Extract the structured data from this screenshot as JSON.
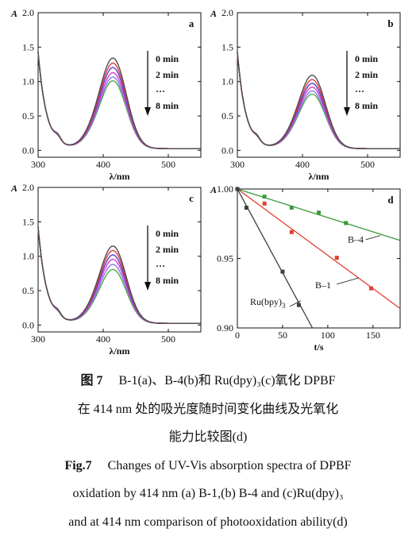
{
  "chart_data": [
    {
      "panel": "a",
      "type": "line",
      "ylabel_letter": "A",
      "xlabel": "λ/nm",
      "xlim": [
        300,
        550
      ],
      "ylim": [
        -0.1,
        2.0
      ],
      "x_ticks": [
        300,
        400,
        500
      ],
      "y_ticks": [
        "0.0",
        "0.5",
        "1.0",
        "1.5",
        "2.0"
      ],
      "legend": [
        "0 min",
        "2 min",
        "…",
        "8 min"
      ],
      "curve_peaks": [
        1.43,
        1.35,
        1.28,
        1.2,
        1.13,
        1.07
      ],
      "curve_colors": [
        "#4d4d4d",
        "#e03c3c",
        "#5a3fd0",
        "#d23fd0",
        "#8878e8",
        "#4ea84e"
      ]
    },
    {
      "panel": "b",
      "type": "line",
      "ylabel_letter": "A",
      "xlabel": "λ/nm",
      "xlim": [
        300,
        550
      ],
      "ylim": [
        -0.1,
        2.0
      ],
      "x_ticks": [
        300,
        400,
        500
      ],
      "y_ticks": [
        "0.0",
        "0.5",
        "1.0",
        "1.5",
        "2.0"
      ],
      "legend": [
        "0 min",
        "2 min",
        "…",
        "8 min"
      ],
      "curve_peaks": [
        1.16,
        1.09,
        1.03,
        0.97,
        0.91,
        0.86
      ],
      "curve_colors": [
        "#4d4d4d",
        "#e03c3c",
        "#5a3fd0",
        "#d23fd0",
        "#8878e8",
        "#4ea84e"
      ]
    },
    {
      "panel": "c",
      "type": "line",
      "ylabel_letter": "A",
      "xlabel": "λ/nm",
      "xlim": [
        300,
        550
      ],
      "ylim": [
        -0.1,
        2.0
      ],
      "x_ticks": [
        300,
        400,
        500
      ],
      "y_ticks": [
        "0.0",
        "0.5",
        "1.0",
        "1.5",
        "2.0"
      ],
      "legend": [
        "0 min",
        "2 min",
        "…",
        "8 min"
      ],
      "curve_peaks": [
        1.22,
        1.15,
        1.08,
        1.01,
        0.93,
        0.85
      ],
      "curve_colors": [
        "#4d4d4d",
        "#e03c3c",
        "#5a3fd0",
        "#d23fd0",
        "#8878e8",
        "#4ea84e"
      ]
    },
    {
      "panel": "d",
      "type": "scatter",
      "ylabel_letter": "A",
      "xlabel": "t/s",
      "xlim": [
        0,
        180
      ],
      "ylim": [
        0.9,
        1.0
      ],
      "x_ticks": [
        0,
        50,
        100,
        150
      ],
      "y_ticks": [
        "0.90",
        "0.95",
        "1.00"
      ],
      "series": [
        {
          "name": "B–4",
          "color": "#3a9a3a",
          "points": [
            [
              0,
              1.0
            ],
            [
              30,
              0.9945
            ],
            [
              60,
              0.9865
            ],
            [
              90,
              0.983
            ],
            [
              120,
              0.9755
            ]
          ],
          "line": [
            [
              0,
              1.0
            ],
            [
              180,
              0.963
            ]
          ]
        },
        {
          "name": "B–1",
          "color": "#e2402f",
          "points": [
            [
              0,
              1.0
            ],
            [
              30,
              0.9895
            ],
            [
              60,
              0.969
            ],
            [
              110,
              0.9505
            ],
            [
              148,
              0.9285
            ]
          ],
          "line": [
            [
              0,
              1.0
            ],
            [
              180,
              0.914
            ]
          ]
        },
        {
          "name": "Ru(bpy)",
          "name_sub": "3",
          "color": "#3d3d3d",
          "points": [
            [
              0,
              1.0
            ],
            [
              10,
              0.9865
            ],
            [
              50,
              0.9405
            ],
            [
              68,
              0.9165
            ]
          ],
          "line": [
            [
              0,
              1.0
            ],
            [
              83,
              0.9
            ]
          ]
        }
      ]
    }
  ],
  "caption": {
    "cn_label": "图 7",
    "cn_line1": "B-1(a)、B-4(b)和 Ru(dpy)₃(c)氧化 DPBF",
    "cn_line2": "在 414 nm 处的吸光度随时间变化曲线及光氧化",
    "cn_line3": "能力比较图(d)",
    "en_label": "Fig.7",
    "en_line1": "Changes of UV-Vis absorption spectra of DPBF",
    "en_line2": "oxidation by 414 nm (a) B-1,(b) B-4 and (c)Ru(dpy)₃",
    "en_line3": "and at 414 nm comparison of photooxidation ability(d)"
  }
}
